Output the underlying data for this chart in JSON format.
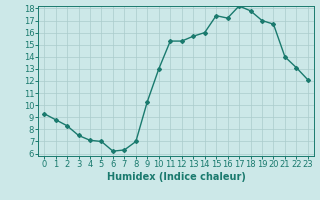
{
  "x": [
    0,
    1,
    2,
    3,
    4,
    5,
    6,
    7,
    8,
    9,
    10,
    11,
    12,
    13,
    14,
    15,
    16,
    17,
    18,
    19,
    20,
    21,
    22,
    23
  ],
  "y": [
    9.3,
    8.8,
    8.3,
    7.5,
    7.1,
    7.0,
    6.2,
    6.3,
    7.0,
    10.3,
    13.0,
    15.3,
    15.3,
    15.7,
    16.0,
    17.4,
    17.2,
    18.2,
    17.8,
    17.0,
    16.7,
    14.0,
    13.1,
    12.1
  ],
  "color": "#1a7a6e",
  "bg_color": "#cce8e8",
  "grid_color": "#aacccc",
  "xlabel": "Humidex (Indice chaleur)",
  "ylim": [
    6,
    18
  ],
  "xlim": [
    -0.5,
    23.5
  ],
  "yticks": [
    6,
    7,
    8,
    9,
    10,
    11,
    12,
    13,
    14,
    15,
    16,
    17,
    18
  ],
  "xticks": [
    0,
    1,
    2,
    3,
    4,
    5,
    6,
    7,
    8,
    9,
    10,
    11,
    12,
    13,
    14,
    15,
    16,
    17,
    18,
    19,
    20,
    21,
    22,
    23
  ],
  "marker": "D",
  "markersize": 2.0,
  "linewidth": 1.0,
  "xlabel_fontsize": 7,
  "tick_fontsize": 6
}
